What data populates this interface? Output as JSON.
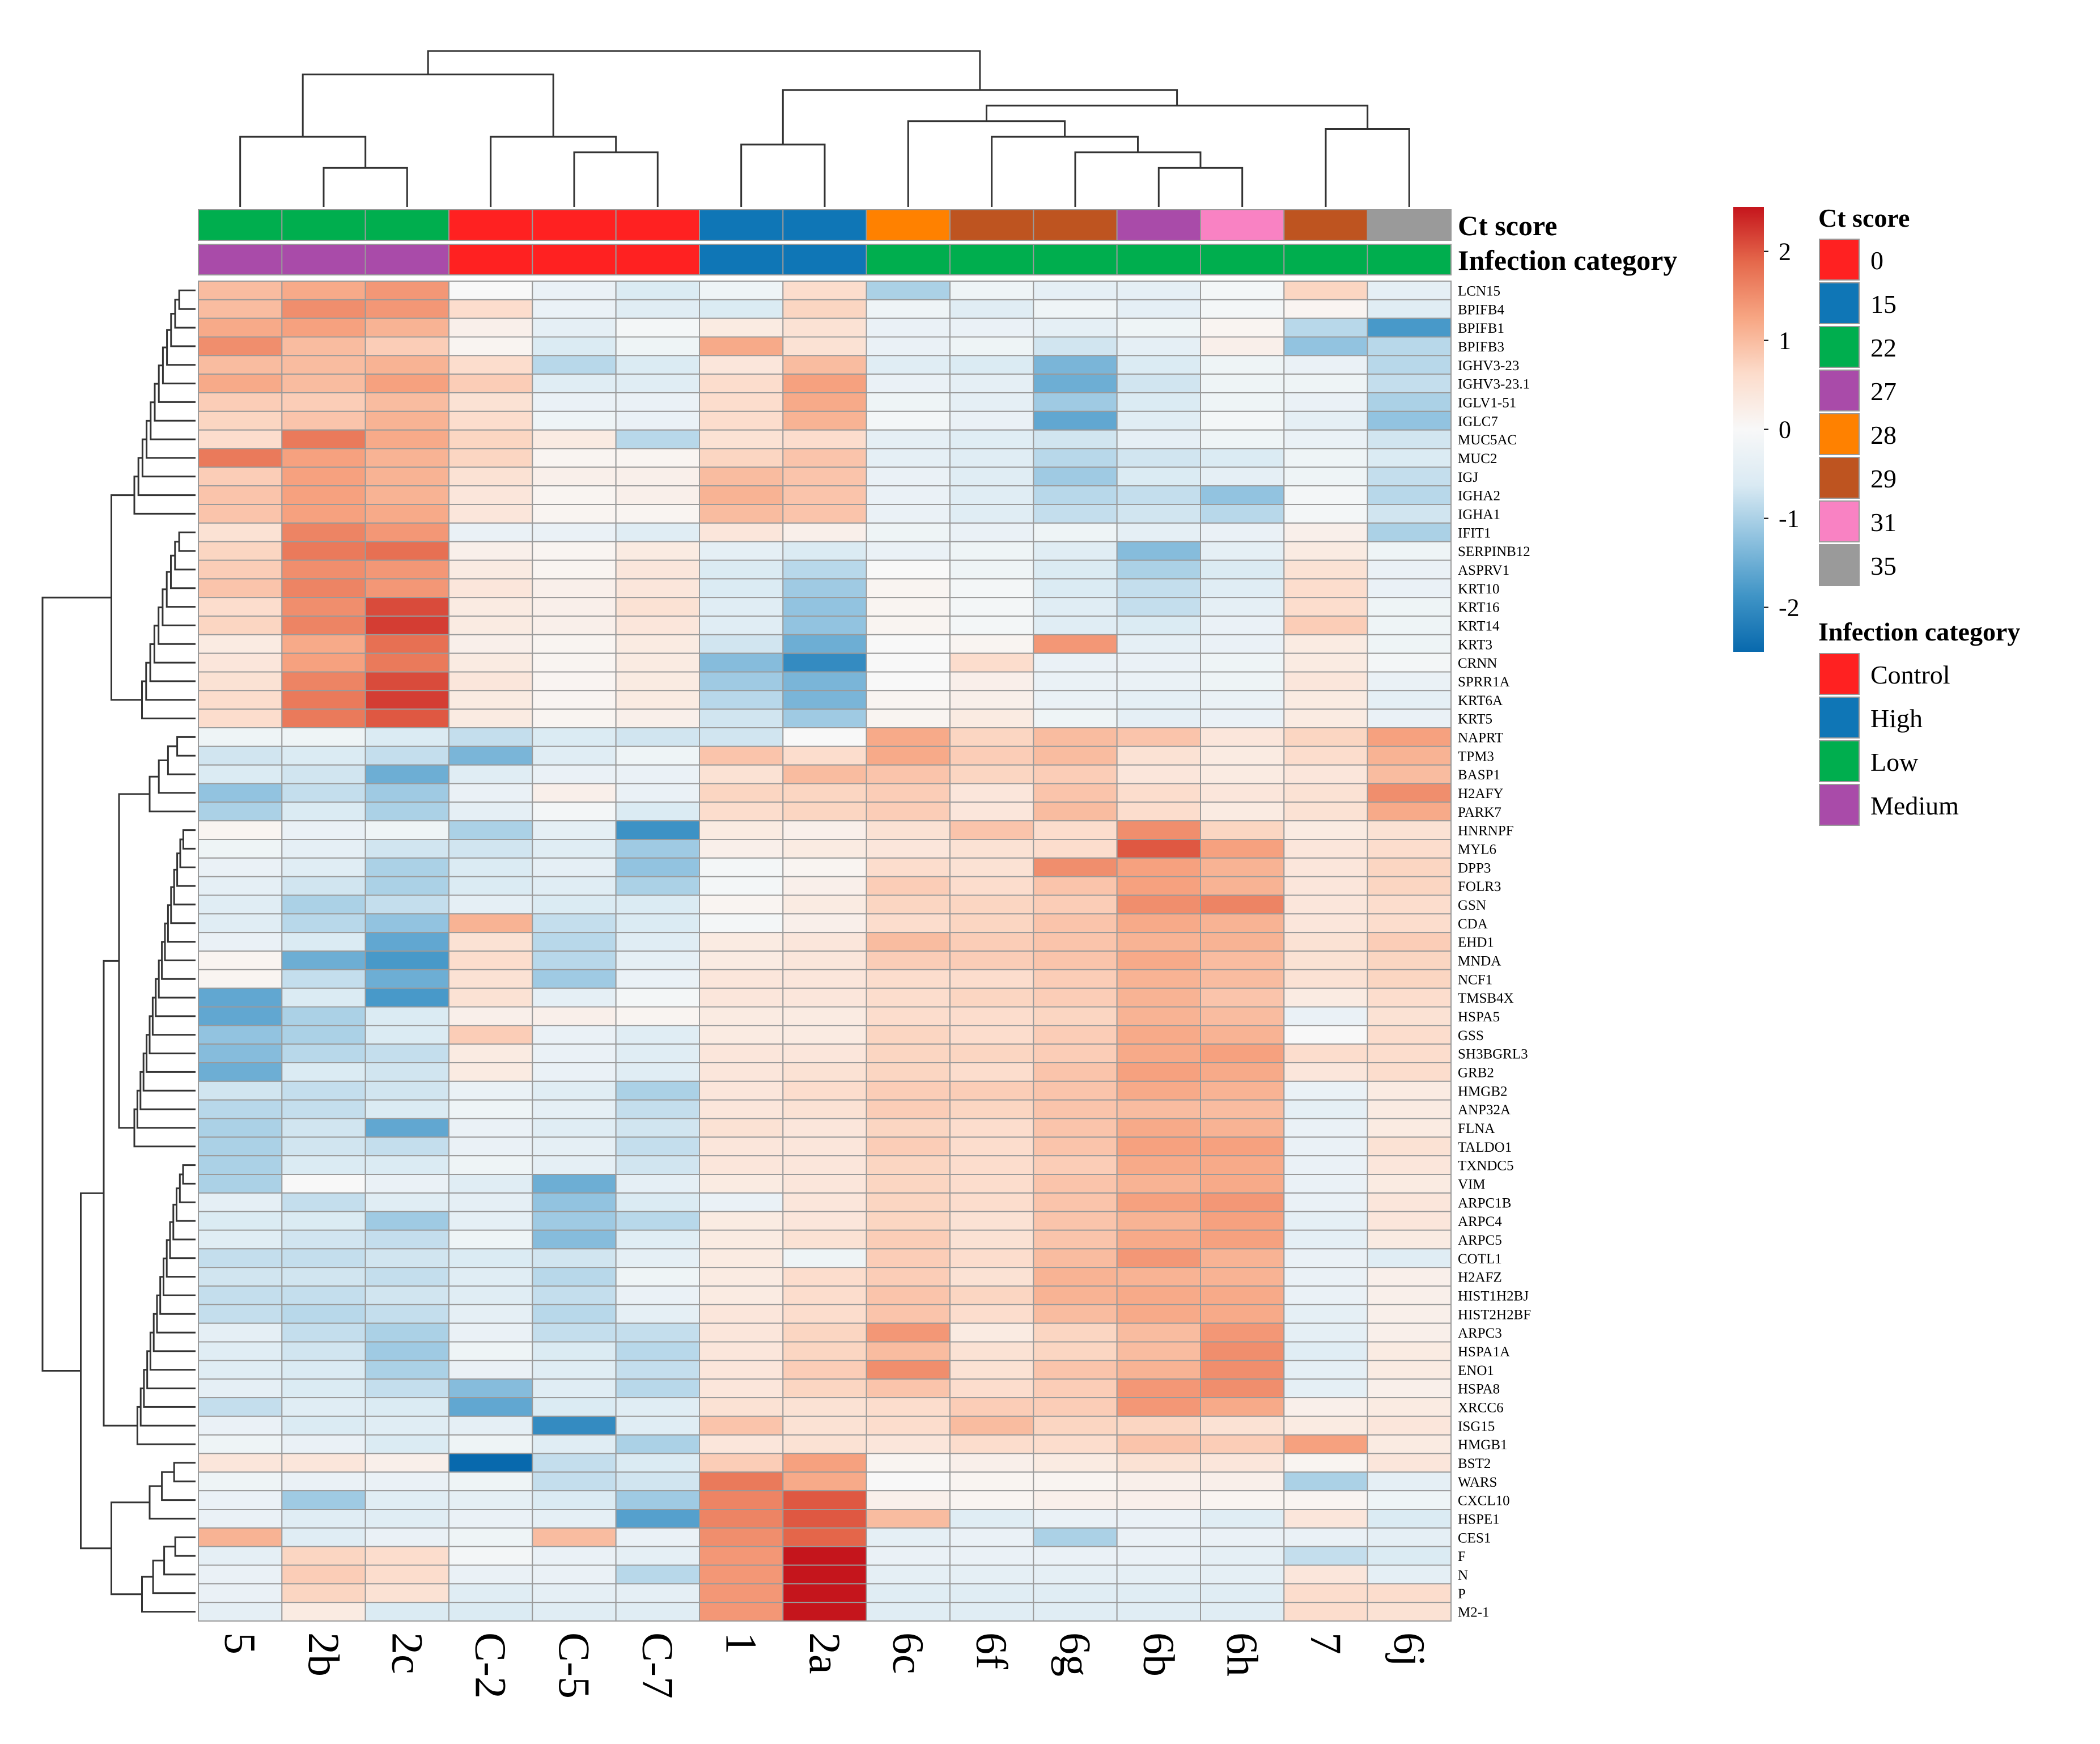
{
  "chart_data": {
    "type": "heatmap",
    "title": "",
    "columns": [
      "5",
      "2b",
      "2c",
      "C-2",
      "C-5",
      "C-7",
      "1",
      "2a",
      "6c",
      "6f",
      "6g",
      "6b",
      "6h",
      "7",
      "6j"
    ],
    "rows": [
      "LCN15",
      "BPIFB4",
      "BPIFB1",
      "BPIFB3",
      "IGHV3-23",
      "IGHV3-23.1",
      "IGLV1-51",
      "IGLC7",
      "MUC5AC",
      "MUC2",
      "IGJ",
      "IGHA2",
      "IGHA1",
      "IFIT1",
      "SERPINB12",
      "ASPRV1",
      "KRT10",
      "KRT16",
      "KRT14",
      "KRT3",
      "CRNN",
      "SPRR1A",
      "KRT6A",
      "KRT5",
      "NAPRT",
      "TPM3",
      "BASP1",
      "H2AFY",
      "PARK7",
      "HNRNPF",
      "MYL6",
      "DPP3",
      "FOLR3",
      "GSN",
      "CDA",
      "EHD1",
      "MNDA",
      "NCF1",
      "TMSB4X",
      "HSPA5",
      "GSS",
      "SH3BGRL3",
      "GRB2",
      "HMGB2",
      "ANP32A",
      "FLNA",
      "TALDO1",
      "TXNDC5",
      "VIM",
      "ARPC1B",
      "ARPC4",
      "ARPC5",
      "COTL1",
      "H2AFZ",
      "HIST1H2BJ",
      "HIST2H2BF",
      "ARPC3",
      "HSPA1A",
      "ENO1",
      "HSPA8",
      "XRCC6",
      "ISG15",
      "HMGB1",
      "BST2",
      "WARS",
      "CXCL10",
      "HSPE1",
      "CES1",
      "F",
      "N",
      "P",
      "M2-1"
    ],
    "values": [
      [
        1.0,
        1.2,
        1.4,
        0.0,
        -0.3,
        -0.6,
        -0.2,
        0.6,
        -1.0,
        -0.2,
        -0.4,
        -0.4,
        -0.1,
        0.7,
        -0.4
      ],
      [
        1.0,
        1.5,
        1.4,
        0.6,
        -0.3,
        -0.5,
        -0.6,
        0.7,
        -0.2,
        -0.5,
        -0.2,
        -0.4,
        -0.1,
        0.1,
        -0.5
      ],
      [
        1.2,
        1.3,
        1.1,
        0.2,
        -0.4,
        -0.1,
        0.3,
        0.5,
        -0.3,
        -0.3,
        -0.4,
        -0.2,
        0.1,
        -0.9,
        -1.8
      ],
      [
        1.5,
        1.0,
        0.8,
        0.1,
        -0.6,
        -0.2,
        1.2,
        0.5,
        -0.3,
        -0.2,
        -0.7,
        -0.4,
        0.2,
        -1.2,
        -0.9
      ],
      [
        1.0,
        1.0,
        1.1,
        0.6,
        -0.9,
        -0.6,
        0.4,
        1.0,
        -0.5,
        -0.6,
        -1.4,
        -0.6,
        -0.2,
        -0.3,
        -0.9
      ],
      [
        1.2,
        1.0,
        1.3,
        0.8,
        -0.5,
        -0.5,
        0.6,
        1.3,
        -0.3,
        -0.4,
        -1.5,
        -0.7,
        -0.2,
        -0.2,
        -0.8
      ],
      [
        0.8,
        0.8,
        1.0,
        0.5,
        -0.3,
        -0.3,
        0.6,
        1.2,
        -0.2,
        -0.4,
        -1.1,
        -0.6,
        -0.2,
        -0.3,
        -1.0
      ],
      [
        0.7,
        0.9,
        1.1,
        0.6,
        -0.2,
        -0.3,
        0.6,
        1.1,
        -0.1,
        -0.3,
        -1.6,
        -0.5,
        -0.1,
        -0.4,
        -1.2
      ],
      [
        0.6,
        1.7,
        1.2,
        0.7,
        0.3,
        -0.9,
        0.5,
        0.6,
        -0.4,
        -0.5,
        -0.7,
        -0.4,
        -0.2,
        -0.3,
        -0.7
      ],
      [
        1.7,
        1.3,
        1.1,
        0.7,
        0.1,
        0.1,
        0.7,
        0.9,
        -0.4,
        -0.5,
        -0.9,
        -0.7,
        -0.6,
        -0.2,
        -0.6
      ],
      [
        0.8,
        1.3,
        1.1,
        0.5,
        0.2,
        0.2,
        1.0,
        0.9,
        -0.3,
        -0.5,
        -1.1,
        -0.6,
        -0.4,
        -0.2,
        -0.8
      ],
      [
        0.9,
        1.3,
        1.1,
        0.4,
        0.1,
        0.2,
        1.1,
        0.9,
        -0.3,
        -0.5,
        -0.9,
        -0.8,
        -1.2,
        -0.1,
        -0.9
      ],
      [
        0.9,
        1.3,
        1.2,
        0.4,
        0.1,
        0.1,
        1.0,
        0.9,
        -0.3,
        -0.5,
        -0.8,
        -0.7,
        -0.9,
        -0.1,
        -0.7
      ],
      [
        0.5,
        1.6,
        1.4,
        -0.3,
        -0.3,
        -0.5,
        0.4,
        0.2,
        -0.2,
        -0.3,
        -0.2,
        -0.4,
        -0.3,
        0.2,
        -1.0
      ],
      [
        0.7,
        1.7,
        1.8,
        0.2,
        0.1,
        0.3,
        -0.4,
        -0.6,
        -0.3,
        -0.2,
        -0.5,
        -1.3,
        -0.4,
        0.3,
        -0.2
      ],
      [
        0.8,
        1.5,
        1.4,
        0.3,
        0.1,
        0.4,
        -0.6,
        -0.9,
        0.0,
        -0.2,
        -0.6,
        -1.0,
        -0.6,
        0.5,
        -0.3
      ],
      [
        0.9,
        1.6,
        1.4,
        0.4,
        0.2,
        0.4,
        -0.6,
        -1.1,
        0.1,
        -0.1,
        -0.6,
        -0.8,
        -0.5,
        0.6,
        -0.3
      ],
      [
        0.6,
        1.5,
        2.1,
        0.3,
        0.2,
        0.5,
        -0.5,
        -1.2,
        0.1,
        -0.1,
        -0.5,
        -0.8,
        -0.4,
        0.6,
        -0.2
      ],
      [
        0.7,
        1.6,
        2.2,
        0.3,
        0.2,
        0.4,
        -0.5,
        -1.2,
        0.1,
        -0.1,
        -0.5,
        -0.6,
        -0.3,
        0.8,
        -0.2
      ],
      [
        0.3,
        1.2,
        1.8,
        0.2,
        0.1,
        0.3,
        -0.7,
        -1.5,
        0.0,
        0.1,
        1.4,
        -0.4,
        -0.3,
        0.3,
        -0.2
      ],
      [
        0.4,
        1.3,
        1.7,
        0.3,
        0.1,
        0.3,
        -1.3,
        -2.0,
        0.0,
        0.6,
        -0.3,
        -0.3,
        -0.2,
        0.3,
        -0.1
      ],
      [
        0.5,
        1.6,
        2.1,
        0.4,
        0.1,
        0.3,
        -1.1,
        -1.4,
        0.0,
        0.2,
        -0.3,
        -0.3,
        -0.2,
        0.4,
        -0.3
      ],
      [
        0.6,
        1.7,
        2.2,
        0.3,
        0.1,
        0.3,
        -0.9,
        -1.4,
        0.1,
        0.2,
        -0.3,
        -0.4,
        -0.3,
        0.3,
        -0.4
      ],
      [
        0.6,
        1.7,
        2.0,
        0.3,
        0.1,
        0.2,
        -0.7,
        -1.1,
        0.1,
        0.3,
        -0.2,
        -0.4,
        -0.3,
        0.3,
        -0.3
      ],
      [
        -0.2,
        -0.2,
        -0.6,
        -0.8,
        -0.6,
        -0.7,
        -0.7,
        0.0,
        1.2,
        0.7,
        1.0,
        0.9,
        0.4,
        0.7,
        1.3
      ],
      [
        -0.7,
        -0.6,
        -0.8,
        -1.4,
        -0.5,
        -0.2,
        0.9,
        0.6,
        1.2,
        0.8,
        1.0,
        0.5,
        0.3,
        0.6,
        1.1
      ],
      [
        -0.6,
        -0.7,
        -1.5,
        -0.5,
        -0.3,
        -0.3,
        0.5,
        1.0,
        0.9,
        0.7,
        0.8,
        0.4,
        0.3,
        0.4,
        1.0
      ],
      [
        -1.2,
        -0.8,
        -1.1,
        -0.3,
        0.2,
        -0.3,
        0.7,
        0.7,
        0.8,
        0.4,
        0.9,
        0.6,
        0.4,
        0.5,
        1.5
      ],
      [
        -1.0,
        -0.6,
        -1.0,
        -0.4,
        -0.1,
        -0.6,
        0.6,
        0.7,
        0.8,
        0.4,
        1.0,
        0.6,
        0.3,
        0.5,
        1.2
      ],
      [
        0.1,
        -0.3,
        -0.2,
        -1.0,
        -0.4,
        -1.9,
        0.3,
        0.2,
        0.5,
        0.9,
        0.6,
        1.5,
        0.7,
        0.3,
        0.5
      ],
      [
        -0.2,
        -0.4,
        -0.7,
        -0.7,
        -0.5,
        -1.1,
        0.2,
        0.3,
        0.4,
        0.5,
        0.6,
        2.0,
        1.3,
        0.4,
        0.6
      ],
      [
        -0.3,
        -0.5,
        -1.0,
        -0.6,
        -0.4,
        -1.2,
        -0.1,
        0.1,
        0.6,
        0.5,
        1.5,
        1.3,
        1.1,
        0.4,
        0.7
      ],
      [
        -0.4,
        -0.7,
        -1.0,
        -0.6,
        -0.5,
        -1.0,
        -0.1,
        0.2,
        0.8,
        0.6,
        0.9,
        1.3,
        1.1,
        0.4,
        0.7
      ],
      [
        -0.5,
        -1.0,
        -0.8,
        -0.4,
        -0.6,
        -0.6,
        0.1,
        0.3,
        0.7,
        0.7,
        0.8,
        1.5,
        1.6,
        0.4,
        0.6
      ],
      [
        -0.5,
        -0.9,
        -1.2,
        1.1,
        -0.8,
        -0.6,
        -0.1,
        0.2,
        0.6,
        0.7,
        0.9,
        1.2,
        1.1,
        0.4,
        0.6
      ],
      [
        -0.3,
        -0.6,
        -1.6,
        0.5,
        -0.9,
        -0.5,
        0.3,
        0.4,
        1.0,
        0.8,
        0.9,
        1.1,
        1.1,
        0.5,
        0.8
      ],
      [
        0.1,
        -1.5,
        -1.8,
        0.6,
        -0.9,
        -0.4,
        0.3,
        0.4,
        0.8,
        0.8,
        0.9,
        1.2,
        1.0,
        0.5,
        0.7
      ],
      [
        0.1,
        -0.8,
        -1.5,
        0.5,
        -1.1,
        -0.3,
        0.4,
        0.4,
        0.6,
        0.6,
        0.8,
        1.1,
        1.0,
        0.5,
        0.7
      ],
      [
        -1.6,
        -0.6,
        -1.8,
        0.5,
        -0.4,
        -0.1,
        0.4,
        0.4,
        0.6,
        0.7,
        0.8,
        1.1,
        0.9,
        0.3,
        0.6
      ],
      [
        -1.6,
        -1.0,
        -0.6,
        0.2,
        0.2,
        0.1,
        0.3,
        0.3,
        0.6,
        0.6,
        0.7,
        1.1,
        1.0,
        -0.3,
        0.5
      ],
      [
        -1.2,
        -1.0,
        -0.6,
        0.8,
        -0.3,
        -0.5,
        0.3,
        0.3,
        0.7,
        0.6,
        0.8,
        1.2,
        1.1,
        0.0,
        0.6
      ],
      [
        -1.3,
        -0.9,
        -0.8,
        0.3,
        -0.3,
        -0.5,
        0.4,
        0.4,
        0.7,
        0.7,
        0.8,
        1.2,
        1.3,
        0.6,
        0.6
      ],
      [
        -1.5,
        -0.6,
        -0.7,
        0.3,
        -0.3,
        -0.5,
        0.4,
        0.5,
        0.7,
        0.6,
        0.9,
        1.3,
        1.2,
        0.4,
        0.6
      ],
      [
        -0.7,
        -0.8,
        -0.7,
        -0.3,
        -0.5,
        -1.0,
        0.4,
        0.6,
        0.8,
        0.8,
        0.9,
        1.2,
        1.1,
        -0.3,
        0.3
      ],
      [
        -0.9,
        -0.8,
        -0.6,
        -0.2,
        -0.4,
        -0.8,
        0.4,
        0.5,
        0.8,
        0.7,
        0.9,
        1.0,
        1.0,
        -0.4,
        0.3
      ],
      [
        -1.0,
        -0.7,
        -1.6,
        -0.3,
        -0.5,
        -0.7,
        0.5,
        0.4,
        0.7,
        0.6,
        0.9,
        1.2,
        1.1,
        -0.3,
        0.3
      ],
      [
        -1.0,
        -0.7,
        -0.8,
        -0.3,
        -0.4,
        -0.8,
        0.4,
        0.4,
        0.8,
        0.6,
        0.9,
        1.3,
        1.3,
        -0.3,
        0.5
      ],
      [
        -1.0,
        -0.6,
        -0.6,
        -0.2,
        -0.4,
        -0.7,
        0.4,
        0.4,
        0.7,
        0.6,
        0.8,
        1.2,
        1.2,
        -0.3,
        0.4
      ],
      [
        -1.0,
        0.0,
        -0.3,
        -0.5,
        -1.5,
        -0.4,
        0.3,
        0.4,
        0.7,
        0.6,
        0.9,
        1.1,
        1.2,
        -0.3,
        0.3
      ],
      [
        -0.4,
        -0.8,
        -0.5,
        -0.4,
        -1.2,
        -0.6,
        -0.3,
        0.4,
        0.7,
        0.6,
        0.9,
        1.3,
        1.4,
        -0.3,
        0.4
      ],
      [
        -0.6,
        -0.6,
        -1.1,
        -0.4,
        -1.1,
        -0.9,
        0.3,
        0.4,
        0.7,
        0.5,
        0.9,
        1.1,
        1.3,
        -0.4,
        0.4
      ],
      [
        -0.5,
        -0.7,
        -0.8,
        -0.2,
        -1.3,
        -0.5,
        0.3,
        0.5,
        0.8,
        0.5,
        0.9,
        1.2,
        1.3,
        -0.4,
        0.3
      ],
      [
        -0.8,
        -0.8,
        -0.7,
        -0.6,
        -0.7,
        -0.4,
        0.3,
        -0.2,
        0.8,
        0.6,
        1.0,
        1.4,
        1.1,
        -0.3,
        -0.5
      ],
      [
        -0.7,
        -0.7,
        -0.8,
        -0.5,
        -0.9,
        -0.2,
        0.3,
        0.6,
        0.8,
        0.5,
        1.1,
        1.1,
        1.1,
        -0.3,
        0.2
      ],
      [
        -0.8,
        -0.8,
        -0.7,
        -0.5,
        -0.8,
        -0.3,
        0.3,
        0.6,
        0.9,
        0.7,
        1.1,
        1.2,
        1.2,
        -0.3,
        0.2
      ],
      [
        -0.8,
        -0.9,
        -0.8,
        -0.4,
        -0.9,
        -0.4,
        0.4,
        0.6,
        0.9,
        0.6,
        1.0,
        1.2,
        1.2,
        -0.4,
        0.2
      ],
      [
        -0.4,
        -0.8,
        -1.0,
        -0.3,
        -0.8,
        -0.8,
        0.4,
        0.7,
        1.4,
        0.3,
        0.7,
        1.0,
        1.4,
        -0.4,
        0.2
      ],
      [
        -0.5,
        -0.7,
        -1.1,
        -0.2,
        -0.6,
        -0.9,
        0.4,
        0.7,
        1.0,
        0.5,
        0.7,
        1.0,
        1.5,
        -0.5,
        0.3
      ],
      [
        -0.5,
        -0.6,
        -1.0,
        -0.3,
        -0.5,
        -0.8,
        0.4,
        0.8,
        1.5,
        0.5,
        0.9,
        1.1,
        1.5,
        -0.4,
        0.3
      ],
      [
        -0.4,
        -0.6,
        -0.8,
        -1.3,
        -0.5,
        -0.9,
        0.4,
        0.7,
        0.9,
        0.6,
        0.8,
        1.4,
        1.5,
        -0.4,
        0.2
      ],
      [
        -0.8,
        -0.5,
        -0.6,
        -1.6,
        -0.6,
        -0.5,
        0.5,
        0.5,
        0.6,
        0.8,
        0.8,
        1.4,
        1.2,
        0.2,
        0.3
      ],
      [
        -0.3,
        -0.6,
        -0.5,
        -0.4,
        -2.0,
        -0.5,
        0.9,
        0.5,
        0.6,
        1.0,
        0.7,
        0.7,
        0.5,
        0.3,
        0.4
      ],
      [
        -0.2,
        -0.3,
        -0.6,
        -0.2,
        -0.5,
        -1.0,
        0.4,
        0.5,
        0.4,
        0.6,
        0.6,
        0.9,
        0.8,
        1.3,
        0.3
      ],
      [
        0.4,
        0.4,
        0.2,
        -2.5,
        -0.8,
        -0.6,
        0.8,
        1.3,
        0.1,
        0.2,
        0.3,
        0.5,
        0.4,
        0.1,
        0.4
      ],
      [
        -0.2,
        -0.3,
        -0.3,
        -0.2,
        -0.8,
        -0.7,
        1.7,
        1.2,
        0.0,
        0.1,
        0.1,
        0.2,
        0.2,
        -1.0,
        -0.4
      ],
      [
        -0.3,
        -1.1,
        -0.5,
        -0.4,
        -0.6,
        -1.1,
        1.6,
        2.0,
        0.2,
        0.1,
        0.2,
        0.2,
        0.1,
        0.1,
        -0.2
      ],
      [
        -0.3,
        -0.5,
        -0.5,
        -0.3,
        -0.4,
        -1.7,
        1.6,
        2.0,
        1.0,
        -0.5,
        -0.3,
        -0.3,
        -0.5,
        0.4,
        -0.6
      ],
      [
        1.1,
        -0.5,
        -0.3,
        -0.2,
        1.0,
        -0.3,
        1.5,
        1.9,
        -0.4,
        -0.3,
        -1.0,
        -0.3,
        -0.3,
        -0.3,
        -0.4
      ],
      [
        -0.4,
        0.7,
        0.6,
        -0.1,
        -0.3,
        -0.4,
        1.4,
        2.6,
        -0.3,
        -0.3,
        -0.3,
        -0.3,
        -0.4,
        -0.8,
        -0.6
      ],
      [
        -0.3,
        0.8,
        0.6,
        -0.3,
        -0.3,
        -0.9,
        1.4,
        2.6,
        -0.4,
        -0.4,
        -0.4,
        -0.4,
        -0.4,
        0.4,
        -0.4
      ],
      [
        -0.3,
        0.7,
        0.5,
        -0.5,
        -0.4,
        -0.4,
        1.4,
        2.6,
        -0.5,
        -0.5,
        -0.5,
        -0.5,
        -0.5,
        0.6,
        0.6
      ],
      [
        -0.4,
        0.3,
        -0.6,
        -0.6,
        -0.5,
        -0.5,
        1.4,
        2.6,
        -0.5,
        -0.5,
        -0.5,
        -0.5,
        -0.5,
        0.6,
        0.5
      ]
    ],
    "annotations": {
      "ct_score": {
        "label": "Ct score",
        "values": [
          "22",
          "22",
          "22",
          "0",
          "0",
          "0",
          "15",
          "15",
          "28",
          "29",
          "29",
          "27",
          "31",
          "29",
          "35"
        ]
      },
      "infection_category": {
        "label": "Infection category",
        "values": [
          "Medium",
          "Medium",
          "Medium",
          "Control",
          "Control",
          "Control",
          "High",
          "High",
          "Low",
          "Low",
          "Low",
          "Low",
          "Low",
          "Low",
          "Low"
        ]
      }
    },
    "color_scale": {
      "min": -2.5,
      "max": 2.5,
      "ticks": [
        "2",
        "1",
        "0",
        "-1",
        "-2"
      ],
      "colors": [
        "#0869AD",
        "#3F94C6",
        "#8CC0DE",
        "#DAEAF3",
        "#F8F8F8",
        "#FCDCCB",
        "#F7A683",
        "#E5694C",
        "#C5151C"
      ]
    },
    "legends": {
      "ct_score": {
        "title": "Ct score",
        "entries": [
          {
            "label": "0",
            "color": "#FF2121"
          },
          {
            "label": "15",
            "color": "#0F76B6"
          },
          {
            "label": "22",
            "color": "#00AE4E"
          },
          {
            "label": "27",
            "color": "#A94BA9"
          },
          {
            "label": "28",
            "color": "#FF8100"
          },
          {
            "label": "29",
            "color": "#BE5420"
          },
          {
            "label": "31",
            "color": "#F982C3"
          },
          {
            "label": "35",
            "color": "#9A9A9A"
          }
        ]
      },
      "infection_category": {
        "title": "Infection category",
        "entries": [
          {
            "label": "Control",
            "color": "#FF2121"
          },
          {
            "label": "High",
            "color": "#0F76B6"
          },
          {
            "label": "Low",
            "color": "#00AE4E"
          },
          {
            "label": "Medium",
            "color": "#A94BA9"
          }
        ]
      }
    }
  }
}
